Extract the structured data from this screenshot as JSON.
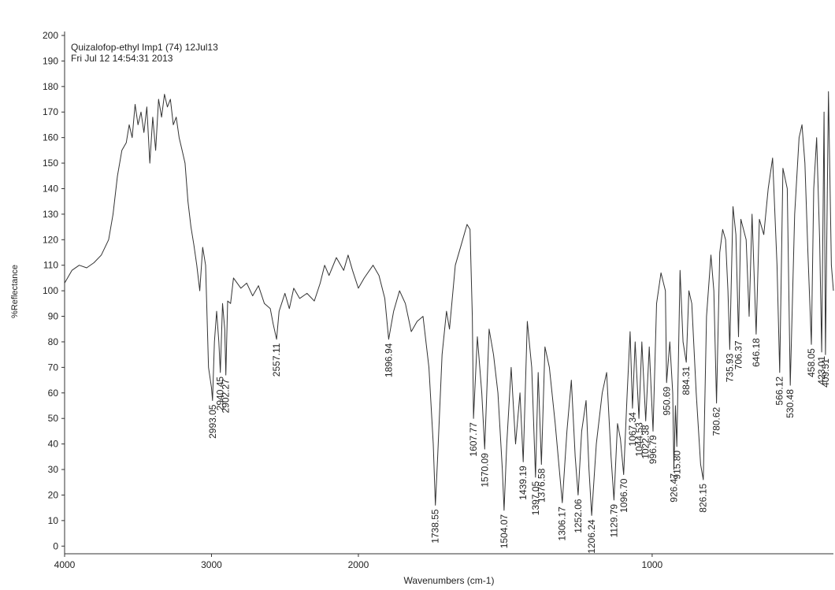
{
  "chart_data": {
    "type": "line",
    "title": "Quizalofop-ethyl Imp1 (74) 12Jul13",
    "subtitle": "Fri Jul 12 14:54:31 2013",
    "x_label": "Wavenumbers (cm-1)",
    "y_label": "%Reflectance",
    "xlim": [
      4000,
      383
    ],
    "xticks": [
      4000,
      3000,
      2000,
      1000
    ],
    "xscale": {
      "break": 2000,
      "expansion": 2
    },
    "ylim": [
      -3,
      200
    ],
    "yticks": [
      0,
      10,
      20,
      30,
      40,
      50,
      60,
      70,
      80,
      90,
      100,
      110,
      120,
      130,
      140,
      150,
      160,
      170,
      180,
      190,
      200
    ],
    "color": "#333333",
    "x": [
      4000,
      3950,
      3900,
      3850,
      3800,
      3750,
      3700,
      3670,
      3640,
      3610,
      3580,
      3560,
      3540,
      3520,
      3500,
      3480,
      3460,
      3440,
      3420,
      3400,
      3380,
      3360,
      3340,
      3320,
      3300,
      3280,
      3260,
      3240,
      3220,
      3200,
      3180,
      3160,
      3140,
      3120,
      3100,
      3080,
      3060,
      3040,
      3020,
      3000,
      2993,
      2980,
      2965,
      2950,
      2940,
      2925,
      2910,
      2902,
      2890,
      2870,
      2850,
      2800,
      2760,
      2720,
      2680,
      2640,
      2600,
      2580,
      2557,
      2540,
      2500,
      2470,
      2440,
      2400,
      2350,
      2300,
      2260,
      2230,
      2200,
      2150,
      2100,
      2070,
      2040,
      2000,
      1980,
      1950,
      1930,
      1910,
      1897,
      1880,
      1860,
      1840,
      1820,
      1800,
      1780,
      1760,
      1745,
      1738,
      1730,
      1715,
      1700,
      1690,
      1670,
      1650,
      1630,
      1620,
      1612,
      1608,
      1595,
      1580,
      1570,
      1555,
      1540,
      1525,
      1510,
      1504,
      1495,
      1480,
      1465,
      1450,
      1439,
      1425,
      1410,
      1397,
      1388,
      1377,
      1365,
      1350,
      1330,
      1306,
      1290,
      1275,
      1262,
      1252,
      1240,
      1225,
      1215,
      1206,
      1190,
      1170,
      1155,
      1140,
      1130,
      1118,
      1108,
      1097,
      1085,
      1075,
      1067,
      1058,
      1045,
      1035,
      1022,
      1010,
      997,
      985,
      970,
      955,
      951,
      940,
      930,
      926,
      921,
      916,
      905,
      895,
      884,
      875,
      865,
      850,
      835,
      826,
      815,
      800,
      790,
      781,
      770,
      760,
      750,
      742,
      736,
      725,
      715,
      706,
      698,
      680,
      670,
      660,
      646,
      635,
      620,
      605,
      590,
      575,
      566,
      555,
      540,
      530,
      515,
      500,
      490,
      480,
      470,
      458,
      450,
      440,
      430,
      423,
      415,
      410,
      400,
      390,
      383
    ],
    "values": [
      103,
      108,
      110,
      109,
      111,
      114,
      120,
      130,
      145,
      155,
      158,
      165,
      160,
      173,
      165,
      170,
      162,
      172,
      150,
      168,
      155,
      175,
      168,
      177,
      172,
      175,
      165,
      168,
      160,
      155,
      150,
      135,
      125,
      118,
      110,
      100,
      117,
      110,
      70,
      62,
      57,
      80,
      92,
      80,
      68,
      95,
      85,
      67,
      96,
      95,
      105,
      101,
      103,
      98,
      102,
      95,
      93,
      87,
      81,
      92,
      99,
      93,
      101,
      97,
      99,
      96,
      103,
      110,
      106,
      113,
      108,
      114,
      108,
      101,
      105,
      110,
      106,
      97,
      81,
      92,
      100,
      95,
      84,
      88,
      90,
      70,
      40,
      16,
      35,
      75,
      92,
      85,
      110,
      118,
      126,
      124,
      90,
      50,
      82,
      60,
      38,
      85,
      75,
      60,
      30,
      14,
      40,
      70,
      40,
      60,
      33,
      88,
      70,
      27,
      68,
      32,
      78,
      70,
      48,
      17,
      45,
      65,
      35,
      20,
      45,
      57,
      30,
      12,
      40,
      60,
      68,
      35,
      18,
      48,
      42,
      28,
      60,
      84,
      54,
      80,
      50,
      80,
      49,
      78,
      45,
      95,
      107,
      100,
      64,
      80,
      60,
      30,
      55,
      39,
      108,
      80,
      72,
      100,
      95,
      60,
      32,
      26,
      90,
      114,
      100,
      56,
      115,
      124,
      120,
      100,
      77,
      133,
      122,
      82,
      128,
      120,
      90,
      130,
      83,
      128,
      122,
      140,
      152,
      110,
      68,
      148,
      140,
      63,
      130,
      160,
      165,
      150,
      115,
      79,
      140,
      160,
      120,
      76,
      170,
      75,
      178,
      110,
      100
    ],
    "peaks": [
      {
        "x": 2993.05,
        "y": 57,
        "label": "2993.05"
      },
      {
        "x": 2940.45,
        "y": 68,
        "label": "2940.45"
      },
      {
        "x": 2902.27,
        "y": 67,
        "label": "2902.27"
      },
      {
        "x": 2557.11,
        "y": 81,
        "label": "2557.11"
      },
      {
        "x": 1896.94,
        "y": 81,
        "label": "1896.94"
      },
      {
        "x": 1738.55,
        "y": 16,
        "label": "1738.55"
      },
      {
        "x": 1607.77,
        "y": 50,
        "label": "1607.77"
      },
      {
        "x": 1570.09,
        "y": 38,
        "label": "1570.09"
      },
      {
        "x": 1504.07,
        "y": 14,
        "label": "1504.07"
      },
      {
        "x": 1439.19,
        "y": 33,
        "label": "1439.19"
      },
      {
        "x": 1397.05,
        "y": 27,
        "label": "1397.05"
      },
      {
        "x": 1376.58,
        "y": 32,
        "label": "1376.58"
      },
      {
        "x": 1306.17,
        "y": 17,
        "label": "1306.17"
      },
      {
        "x": 1252.06,
        "y": 20,
        "label": "1252.06"
      },
      {
        "x": 1206.24,
        "y": 12,
        "label": "1206.24"
      },
      {
        "x": 1129.79,
        "y": 18,
        "label": "1129.79"
      },
      {
        "x": 1096.7,
        "y": 28,
        "label": "1096.70"
      },
      {
        "x": 1067.34,
        "y": 54,
        "label": "1067.34"
      },
      {
        "x": 1044.53,
        "y": 50,
        "label": "1044.53"
      },
      {
        "x": 1022.38,
        "y": 49,
        "label": "1022.38"
      },
      {
        "x": 996.79,
        "y": 45,
        "label": "996.79"
      },
      {
        "x": 950.69,
        "y": 64,
        "label": "950.69"
      },
      {
        "x": 926.47,
        "y": 30,
        "label": "926.47"
      },
      {
        "x": 915.8,
        "y": 39,
        "label": "915.80"
      },
      {
        "x": 884.31,
        "y": 72,
        "label": "884.31"
      },
      {
        "x": 826.15,
        "y": 26,
        "label": "826.15"
      },
      {
        "x": 780.62,
        "y": 56,
        "label": "780.62"
      },
      {
        "x": 735.93,
        "y": 77,
        "label": "735.93"
      },
      {
        "x": 706.37,
        "y": 82,
        "label": "706.37"
      },
      {
        "x": 646.18,
        "y": 83,
        "label": "646.18"
      },
      {
        "x": 566.12,
        "y": 68,
        "label": "566.12"
      },
      {
        "x": 530.48,
        "y": 63,
        "label": "530.48"
      },
      {
        "x": 458.05,
        "y": 79,
        "label": "458.05"
      },
      {
        "x": 423.01,
        "y": 76,
        "label": "423.01"
      },
      {
        "x": 409.51,
        "y": 75,
        "label": "409.51"
      }
    ]
  }
}
